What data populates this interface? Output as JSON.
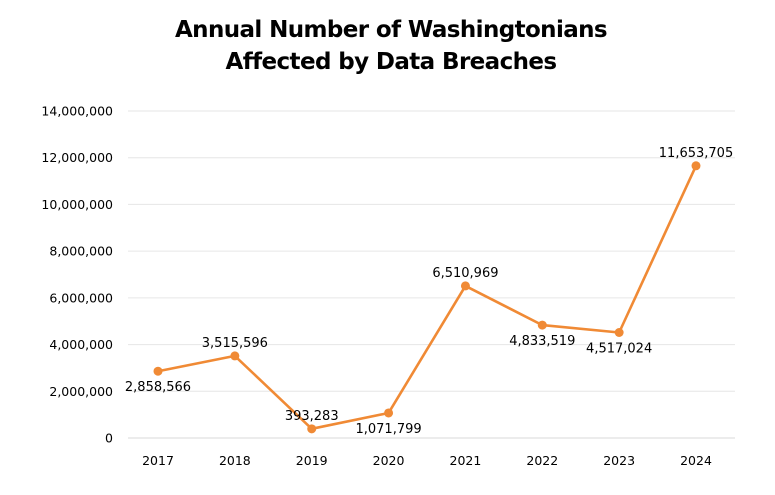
{
  "chart_data": {
    "type": "line",
    "title_lines": [
      "Annual Number of Washingtonians",
      "Affected by Data Breaches"
    ],
    "xlabel": "",
    "ylabel": "",
    "categories": [
      "2017",
      "2018",
      "2019",
      "2020",
      "2021",
      "2022",
      "2023",
      "2024"
    ],
    "series": [
      {
        "name": "Washingtonians affected",
        "values": [
          2858566,
          3515596,
          393283,
          1071799,
          6510969,
          4833519,
          4517024,
          11653705
        ],
        "labels": [
          "2,858,566",
          "3,515,596",
          "393,283",
          "1,071,799",
          "6,510,969",
          "4,833,519",
          "4,517,024",
          "11,653,705"
        ],
        "label_position": [
          "below",
          "above",
          "above",
          "below",
          "above",
          "below",
          "below",
          "above"
        ],
        "color": "#F08A35"
      }
    ],
    "ylim": [
      0,
      14000000
    ],
    "yticks": [
      0,
      2000000,
      4000000,
      6000000,
      8000000,
      10000000,
      12000000,
      14000000
    ],
    "ytick_labels": [
      "0",
      "2,000,000",
      "4,000,000",
      "6,000,000",
      "8,000,000",
      "10,000,000",
      "12,000,000",
      "14,000,000"
    ],
    "grid": true,
    "grid_color": "#E6E6E6",
    "legend": "none"
  }
}
